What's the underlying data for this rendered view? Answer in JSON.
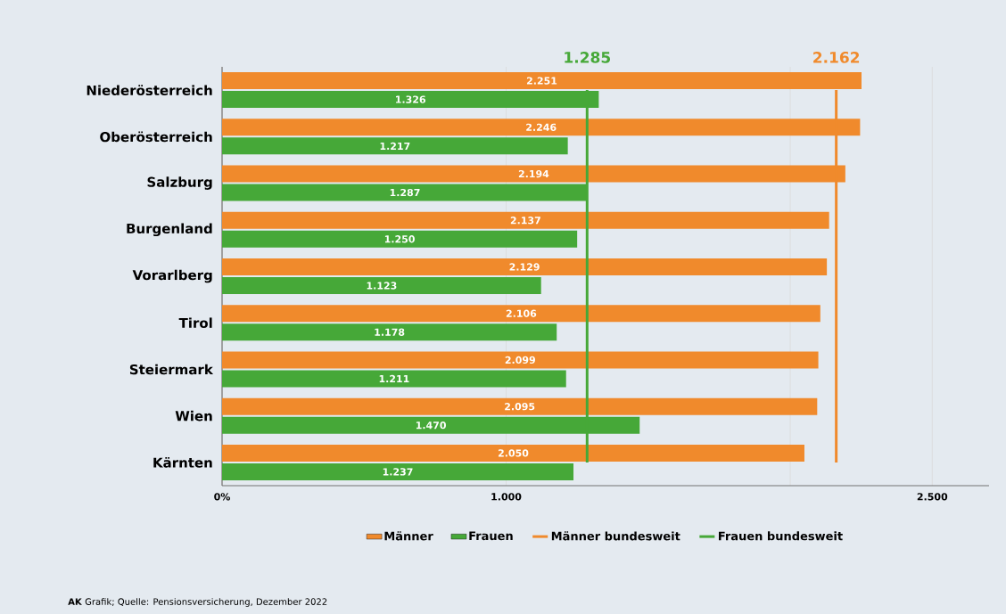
{
  "chart_data": {
    "type": "bar",
    "orientation": "horizontal",
    "categories": [
      "Niederösterreich",
      "Oberösterreich",
      "Salzburg",
      "Burgenland",
      "Vorarlberg",
      "Tirol",
      "Steiermark",
      "Wien",
      "Kärnten"
    ],
    "series": [
      {
        "name": "Männer",
        "color": "#f08a2c",
        "values": [
          2251,
          2246,
          2194,
          2137,
          2129,
          2106,
          2099,
          2095,
          2050
        ],
        "value_labels": [
          "2.251",
          "2.246",
          "2.194",
          "2.137",
          "2.129",
          "2.106",
          "2.099",
          "2.095",
          "2.050"
        ]
      },
      {
        "name": "Frauen",
        "color": "#46a838",
        "values": [
          1326,
          1217,
          1287,
          1250,
          1123,
          1178,
          1211,
          1470,
          1237
        ],
        "value_labels": [
          "1.326",
          "1.217",
          "1.287",
          "1.250",
          "1.123",
          "1.178",
          "1.211",
          "1.470",
          "1.237"
        ]
      },
      {
        "name": "Männer bundesweit",
        "type": "line",
        "color": "#f08a2c",
        "values": [
          2162,
          2162,
          2162,
          2162,
          2162,
          2162,
          2162,
          2162,
          2162
        ],
        "value_labels": [
          "2.162",
          null,
          null,
          null,
          null,
          null,
          null,
          null,
          null
        ]
      },
      {
        "name": "Frauen bundesweit",
        "type": "line",
        "color": "#46a838",
        "values": [
          1285,
          1285,
          1285,
          1285,
          1285,
          1285,
          1285,
          1285,
          1285
        ],
        "value_labels": [
          "1.285",
          null,
          null,
          null,
          null,
          null,
          null,
          null,
          null
        ]
      }
    ],
    "xlim": [
      0,
      2700
    ],
    "xticks": [
      {
        "value": 0,
        "label": "0%"
      },
      {
        "value": 1000,
        "label": "1.000"
      },
      {
        "value": 2000,
        "label": null
      },
      {
        "value": 2500,
        "label": "2.500"
      }
    ],
    "grid": "x",
    "legend": "bottom",
    "annotations": [
      "**AK** Grafik; Quelle: Pensionsversicherung, Dezember 2022"
    ]
  }
}
